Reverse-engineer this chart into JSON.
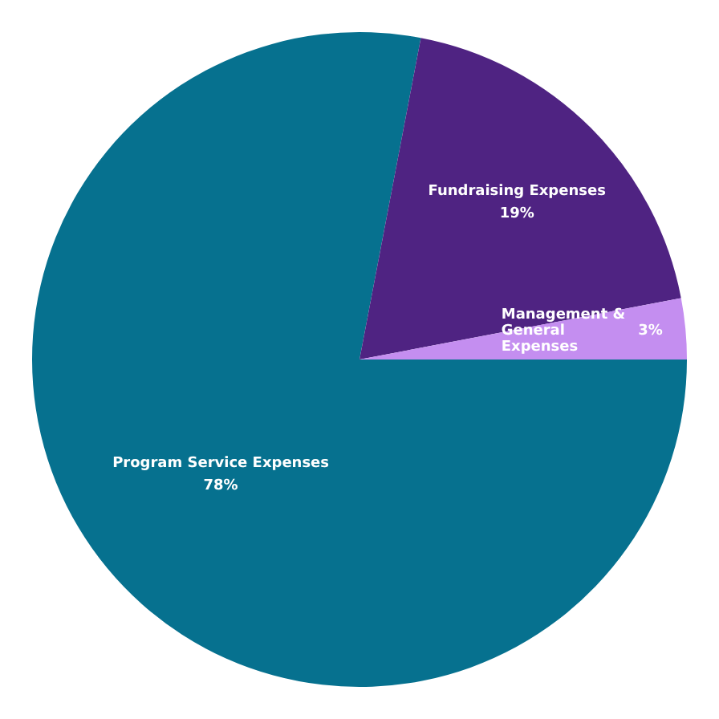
{
  "chart_data": {
    "type": "pie",
    "categories": [
      "Program Service Expenses",
      "Fundraising Expenses",
      "Management & General Expenses"
    ],
    "values": [
      78,
      19,
      3
    ],
    "colors": [
      "#06718f",
      "#4f2382",
      "#c48ef0"
    ],
    "value_labels": [
      "78%",
      "19%",
      "3%"
    ],
    "legend": false
  }
}
